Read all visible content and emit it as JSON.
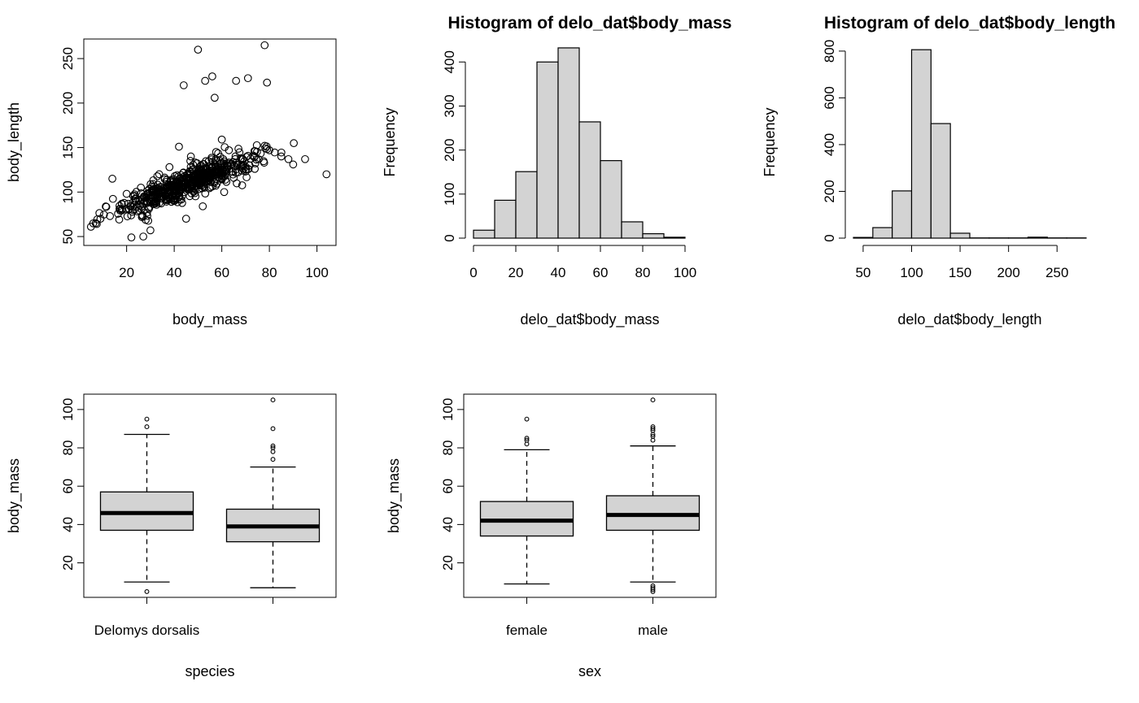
{
  "colors": {
    "box_fill": "#d3d3d3",
    "bar_fill": "#d3d3d3",
    "ink": "#000000",
    "background": "#ffffff"
  },
  "chart_data": [
    {
      "type": "scatter",
      "title": "",
      "xlabel": "body_mass",
      "ylabel": "body_length",
      "xlim": [
        2,
        108
      ],
      "ylim": [
        40,
        272
      ],
      "x_ticks": [
        20,
        40,
        60,
        80,
        100
      ],
      "y_ticks": [
        50,
        100,
        150,
        200,
        250
      ],
      "frame": "box",
      "marker": "open-circle",
      "trend": {
        "intercept": 62,
        "slope": 1.05,
        "spread_sd": 8,
        "x_range": [
          5,
          92
        ],
        "n_dense": 560,
        "seed": 7
      },
      "points": [
        [
          5,
          61
        ],
        [
          7,
          65
        ],
        [
          9,
          70
        ],
        [
          14,
          115
        ],
        [
          13,
          73
        ],
        [
          20,
          98
        ],
        [
          22,
          49
        ],
        [
          27,
          50
        ],
        [
          30,
          57
        ],
        [
          45,
          70
        ],
        [
          42,
          151
        ],
        [
          47,
          140
        ],
        [
          60,
          159
        ],
        [
          63,
          147
        ],
        [
          78,
          152
        ],
        [
          80,
          147
        ],
        [
          95,
          137
        ],
        [
          104,
          120
        ],
        [
          44,
          220
        ],
        [
          50,
          260
        ],
        [
          53,
          225
        ],
        [
          56,
          230
        ],
        [
          57,
          206
        ],
        [
          66,
          225
        ],
        [
          71,
          228
        ],
        [
          78,
          265
        ],
        [
          79,
          223
        ],
        [
          85,
          140
        ],
        [
          88,
          137
        ],
        [
          90,
          131
        ],
        [
          74,
          146
        ],
        [
          68,
          138
        ],
        [
          35,
          95
        ],
        [
          40,
          90
        ],
        [
          38,
          128
        ],
        [
          52,
          84
        ],
        [
          26,
          105
        ],
        [
          18,
          87
        ],
        [
          61,
          100
        ],
        [
          65,
          116
        ]
      ]
    },
    {
      "type": "bar",
      "title": "Histogram of delo_dat$body_mass",
      "xlabel": "delo_dat$body_mass",
      "ylabel": "Frequency",
      "xlim": [
        0,
        110
      ],
      "ylim": [
        0,
        430
      ],
      "x_ticks": [
        0,
        20,
        40,
        60,
        80,
        100
      ],
      "y_ticks": [
        0,
        100,
        200,
        300,
        400
      ],
      "bin_edges": [
        0,
        10,
        20,
        30,
        40,
        50,
        60,
        70,
        80,
        90,
        100,
        110
      ],
      "values": [
        18,
        86,
        151,
        400,
        432,
        264,
        176,
        37,
        10,
        2,
        0
      ]
    },
    {
      "type": "bar",
      "title": "Histogram of delo_dat$body_length",
      "xlabel": "delo_dat$body_length",
      "ylabel": "Frequency",
      "xlim": [
        40,
        280
      ],
      "ylim": [
        0,
        810
      ],
      "x_ticks": [
        50,
        100,
        150,
        200,
        250
      ],
      "y_ticks": [
        0,
        200,
        400,
        600,
        800
      ],
      "bin_edges": [
        40,
        60,
        80,
        100,
        120,
        140,
        160,
        180,
        200,
        220,
        240,
        260,
        280
      ],
      "values": [
        3,
        45,
        202,
        806,
        490,
        21,
        1,
        1,
        1,
        4,
        1,
        1
      ]
    },
    {
      "type": "boxplot",
      "title": "",
      "xlabel": "species",
      "ylabel": "body_mass",
      "ylim": [
        2,
        108
      ],
      "y_ticks": [
        20,
        40,
        60,
        80,
        100
      ],
      "categories": [
        "Delomys dorsalis",
        ""
      ],
      "boxes": [
        {
          "whisker_low": 10,
          "q1": 37,
          "median": 46,
          "q3": 57,
          "whisker_high": 87,
          "outliers": [
            5,
            91,
            95
          ]
        },
        {
          "whisker_low": 7,
          "q1": 31,
          "median": 39,
          "q3": 48,
          "whisker_high": 70,
          "outliers": [
            74,
            78,
            80,
            81,
            90,
            105
          ]
        }
      ]
    },
    {
      "type": "boxplot",
      "title": "",
      "xlabel": "sex",
      "ylabel": "body_mass",
      "ylim": [
        2,
        108
      ],
      "y_ticks": [
        20,
        40,
        60,
        80,
        100
      ],
      "categories": [
        "female",
        "male"
      ],
      "boxes": [
        {
          "whisker_low": 9,
          "q1": 34,
          "median": 42,
          "q3": 52,
          "whisker_high": 79,
          "outliers": [
            82,
            84,
            85,
            95
          ]
        },
        {
          "whisker_low": 10,
          "q1": 37,
          "median": 45,
          "q3": 55,
          "whisker_high": 81,
          "outliers": [
            5,
            6,
            7,
            8,
            84,
            86,
            87,
            89,
            90,
            91,
            105
          ]
        }
      ]
    }
  ]
}
